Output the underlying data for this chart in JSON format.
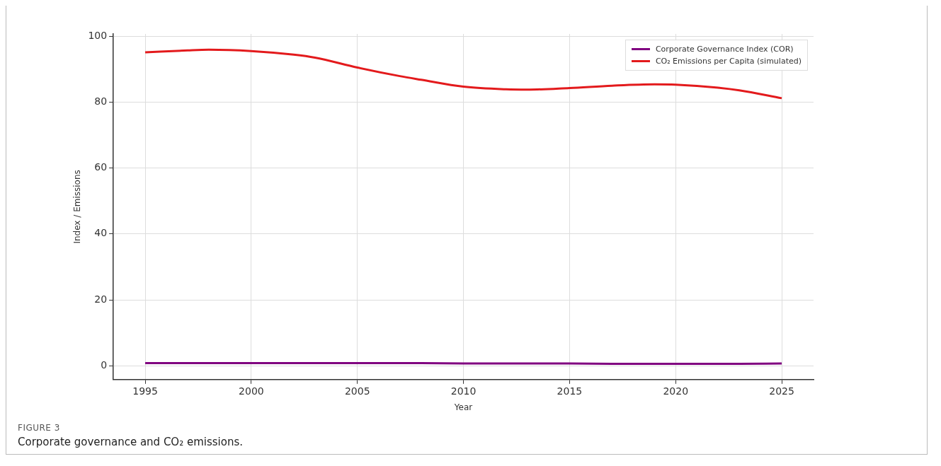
{
  "chart_data": {
    "type": "line",
    "xlabel": "Year",
    "ylabel": "Index / Emissions",
    "x": [
      1995,
      1997,
      1998,
      2000,
      2002,
      2003,
      2005,
      2007,
      2008,
      2010,
      2012,
      2013,
      2015,
      2017,
      2019,
      2020,
      2022,
      2023,
      2025
    ],
    "series": [
      {
        "name": "Corporate Governance Index (COR)",
        "color": "#800080",
        "values": [
          0.8,
          0.8,
          0.8,
          0.8,
          0.8,
          0.8,
          0.8,
          0.8,
          0.8,
          0.7,
          0.7,
          0.7,
          0.7,
          0.6,
          0.6,
          0.6,
          0.6,
          0.6,
          0.7
        ]
      },
      {
        "name": "CO₂ Emissions per Capita (simulated)",
        "color": "#e31a1c",
        "values": [
          95.1,
          95.7,
          95.9,
          95.5,
          94.4,
          93.5,
          90.5,
          87.9,
          86.8,
          84.7,
          83.9,
          83.8,
          84.3,
          85.0,
          85.4,
          85.3,
          84.4,
          83.6,
          81.2
        ]
      }
    ],
    "xlim": [
      1993.5,
      2026.5
    ],
    "xticks": [
      1995,
      2000,
      2005,
      2010,
      2015,
      2020,
      2025
    ],
    "ylim": [
      -4.2,
      100.7
    ],
    "yticks": [
      0,
      20,
      40,
      60,
      80,
      100
    ],
    "grid": true,
    "legend": "top right",
    "line_style": "solid",
    "marker": "none",
    "annotations": [
      "FIGURE 3",
      "Corporate governance and CO₂ emissions."
    ]
  }
}
